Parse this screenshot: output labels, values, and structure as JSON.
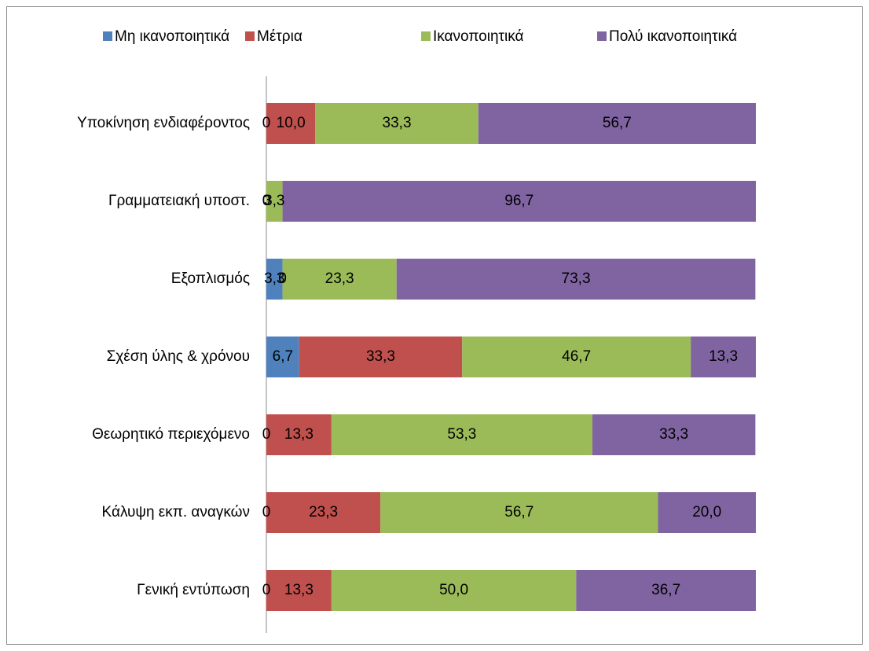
{
  "chart_data": {
    "type": "bar",
    "orientation": "horizontal",
    "stacked": true,
    "categories": [
      "Υποκίνηση ενδιαφέροντος",
      "Γραμματειακή υποστ.",
      "Εξοπλισμός",
      "Σχέση  ύλης & χρόνου",
      "Θεωρητικό περιεχόμενο",
      "Κάλυψη εκπ. αναγκών",
      "Γενική εντύπωση"
    ],
    "series": [
      {
        "name": "Μη ικανοποιητικά",
        "color": "#4f81bd",
        "values": [
          0,
          0,
          3.3,
          6.7,
          0,
          0,
          0
        ],
        "value_labels": [
          "0",
          "0",
          "3,3",
          "6,7",
          "0",
          "0",
          "0"
        ]
      },
      {
        "name": "Μέτρια",
        "color": "#c0504d",
        "values": [
          10.0,
          0,
          0,
          33.3,
          13.3,
          23.3,
          13.3
        ],
        "value_labels": [
          "10,0",
          "0",
          "0",
          "33,3",
          "13,3",
          "23,3",
          "13,3"
        ]
      },
      {
        "name": "Ικανοποιητικά",
        "color": "#9bbb59",
        "values": [
          33.3,
          3.3,
          23.3,
          46.7,
          53.3,
          56.7,
          50.0
        ],
        "value_labels": [
          "33,3",
          "3,3",
          "23,3",
          "46,7",
          "53,3",
          "56,7",
          "50,0"
        ]
      },
      {
        "name": "Πολύ ικανοποιητικά",
        "color": "#8064a2",
        "values": [
          56.7,
          96.7,
          73.3,
          13.3,
          33.3,
          20.0,
          36.7
        ],
        "value_labels": [
          "56,7",
          "96,7",
          "73,3",
          "13,3",
          "33,3",
          "20,0",
          "36,7"
        ]
      }
    ],
    "xlim": [
      0,
      100
    ],
    "legend": "top"
  }
}
